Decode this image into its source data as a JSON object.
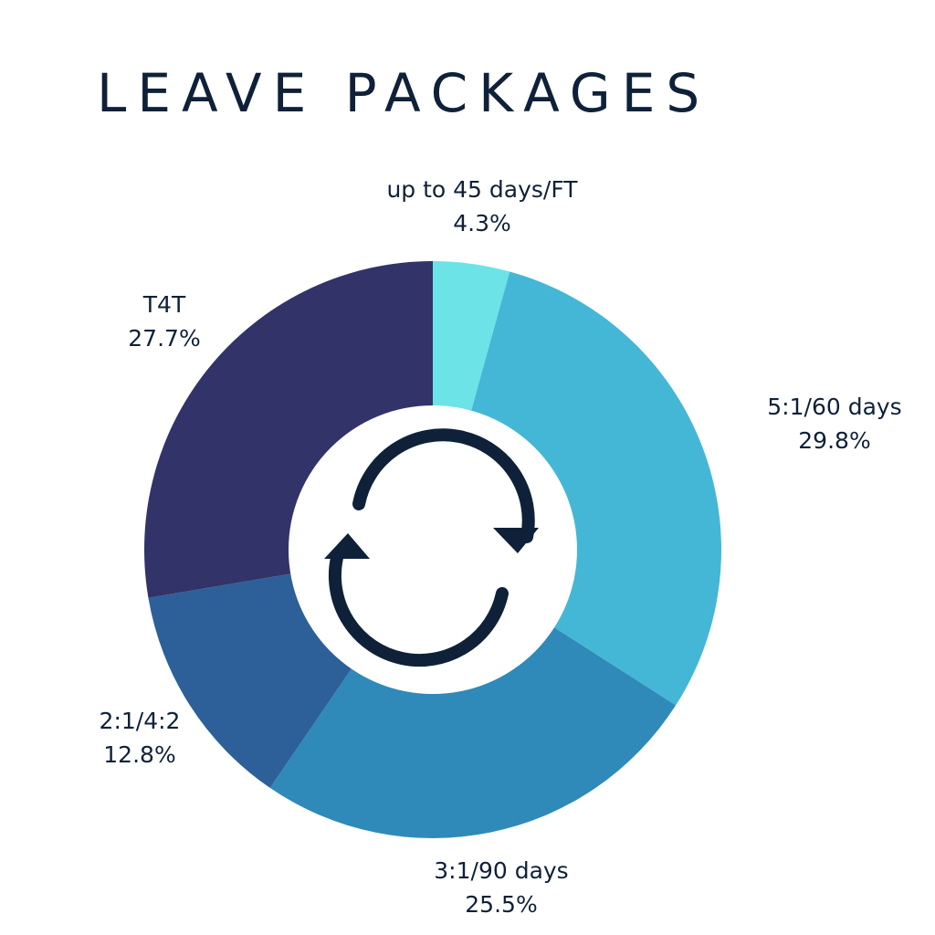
{
  "title": "LEAVE PACKAGES",
  "center_icon": "refresh-cycle-icon",
  "colors": {
    "text": "#0f2138",
    "icon": "#0f2138",
    "center": "#ffffff"
  },
  "chart_data": {
    "type": "pie",
    "donut": true,
    "title": "LEAVE PACKAGES",
    "slices": [
      {
        "label": "up to 45 days/FT",
        "value": 4.3,
        "display": "4.3%",
        "color": "#6ce3e6"
      },
      {
        "label": "5:1/60 days",
        "value": 29.8,
        "display": "29.8%",
        "color": "#44b6d6"
      },
      {
        "label": "3:1/90 days",
        "value": 25.5,
        "display": "25.5%",
        "color": "#2f8ab9"
      },
      {
        "label": "2:1/4:2",
        "value": 12.8,
        "display": "12.8%",
        "color": "#2d5f98"
      },
      {
        "label": "T4T",
        "value": 27.7,
        "display": "27.7%",
        "color": "#323469"
      }
    ],
    "start": "top",
    "direction": "clockwise",
    "legend": "labels outside slices"
  }
}
